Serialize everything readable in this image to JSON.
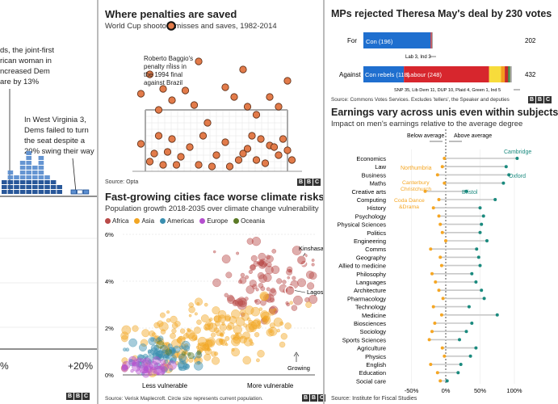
{
  "colors": {
    "dem": "#2f5ea8",
    "africa": "#b94a48",
    "asia": "#f2a623",
    "americas": "#3a8fb0",
    "europe": "#b54fcf",
    "oceania": "#5b7a26",
    "orange": "#f5a623",
    "teal": "#1a8a7e",
    "con": "#1f6fcf",
    "labour": "#d7262d",
    "snp": "#f7dc3b",
    "libdem": "#f59b1d",
    "other": "#9b9b9b"
  },
  "left_panel": {
    "annotation_top": [
      "ds, the joint-first",
      "rican woman in",
      "ncreased Dem",
      "are by 13%"
    ],
    "annotation_wv": [
      "In West Virginia 3,",
      "Dems failed to turn",
      "the seat despite a",
      "20% swing their way"
    ],
    "axis_left": "%",
    "axis_right": "+20%",
    "chart_data": {
      "type": "bar",
      "values": []
    }
  },
  "penalties": {
    "title": "Where penalties are saved",
    "subtitle": "World Cup shootout misses and saves, 1982-2014",
    "annotation": [
      "Roberto Baggio's",
      "penalty miss in",
      "the 1994 final",
      "against Brazil"
    ],
    "source": "Source: Opta",
    "chart_data": {
      "type": "scatter",
      "points_above": [
        [
          -15,
          120
        ],
        [
          -10,
          88
        ],
        [
          -4,
          136
        ],
        [
          2,
          104
        ],
        [
          6,
          126
        ],
        [
          12,
          92
        ],
        [
          16,
          112
        ],
        [
          -13,
          76
        ],
        [
          9,
          70
        ],
        [
          14,
          80
        ],
        [
          -2,
          60
        ],
        [
          4,
          92
        ],
        [
          -7,
          100
        ],
        [
          -17,
          96
        ],
        [
          -12,
          102
        ],
        [
          7,
          80
        ],
        [
          -5,
          82
        ]
      ],
      "points_goal": [
        [
          -17,
          34
        ],
        [
          -15,
          12
        ],
        [
          -13,
          44
        ],
        [
          -11,
          24
        ],
        [
          -10,
          40
        ],
        [
          -8,
          18
        ],
        [
          -6,
          30
        ],
        [
          -4,
          8
        ],
        [
          -3,
          44
        ],
        [
          0,
          20
        ],
        [
          2,
          36
        ],
        [
          5,
          14
        ],
        [
          7,
          28
        ],
        [
          8,
          44
        ],
        [
          11,
          10
        ],
        [
          12,
          32
        ],
        [
          14,
          20
        ],
        [
          15,
          40
        ],
        [
          16,
          26
        ],
        [
          -1,
          6
        ],
        [
          -9,
          8
        ],
        [
          3,
          6
        ],
        [
          6,
          22
        ],
        [
          9,
          14
        ],
        [
          13,
          30
        ],
        [
          -14,
          22
        ],
        [
          -12,
          8
        ],
        [
          10,
          40
        ],
        [
          17,
          14
        ]
      ],
      "highlight": [
        0,
        128
      ]
    }
  },
  "mps": {
    "title": "MPs rejected Theresa May's deal by 230 votes",
    "for_label": "For",
    "against_label": "Against",
    "for_seg": "Con (196)",
    "against_seg1": "Con rebels (118)",
    "against_seg2": "Labour (248)",
    "for_total": "202",
    "against_total": "432",
    "for_note": "Lab 3, Ind 3",
    "against_note": "SNP 35, Lib Dem 11, DUP 10, Plaid 4, Green 1, Ind 5",
    "source": "Source: Commons Votes Services. Excludes 'tellers', the Speaker and deputies",
    "chart_data": {
      "type": "bar",
      "categories": [
        "For",
        "Against"
      ],
      "series": [
        {
          "name": "Con",
          "values": [
            196,
            118
          ]
        },
        {
          "name": "Labour",
          "values": [
            3,
            248
          ]
        },
        {
          "name": "SNP",
          "values": [
            0,
            35
          ]
        },
        {
          "name": "Lib Dem",
          "values": [
            0,
            11
          ]
        },
        {
          "name": "DUP",
          "values": [
            0,
            10
          ]
        },
        {
          "name": "Plaid",
          "values": [
            0,
            4
          ]
        },
        {
          "name": "Green",
          "values": [
            0,
            1
          ]
        },
        {
          "name": "Ind",
          "values": [
            3,
            5
          ]
        }
      ],
      "totals": [
        202,
        432
      ]
    }
  },
  "cities": {
    "title": "Fast-growing cities face worse climate risks",
    "subtitle": "Population growth 2018-2035 over climate change vulnerability",
    "legend": [
      "Africa",
      "Asia",
      "Americas",
      "Europe",
      "Oceania"
    ],
    "yticks": [
      "6%",
      "4%",
      "2%",
      "0%"
    ],
    "xlabel_left": "Less vulnerable",
    "xlabel_right": "More vulnerable",
    "growing": "Growing",
    "kinshasa": "Kinshasa",
    "lagos": "Lagos",
    "source": "Source: Verisk Maplecroft. Circle size represents current population.",
    "chart_data": {
      "type": "scatter",
      "ylim": [
        0,
        6
      ],
      "clusters": [
        {
          "name": "Africa",
          "cx": 0.78,
          "cy": 4.1,
          "sx": 0.12,
          "sy": 0.75,
          "n": 90
        },
        {
          "name": "Asia",
          "cx": 0.45,
          "cy": 1.8,
          "sx": 0.22,
          "sy": 0.6,
          "n": 190
        },
        {
          "name": "Americas",
          "cx": 0.2,
          "cy": 0.8,
          "sx": 0.1,
          "sy": 0.35,
          "n": 70
        },
        {
          "name": "Europe",
          "cx": 0.12,
          "cy": 0.3,
          "sx": 0.07,
          "sy": 0.2,
          "n": 35
        },
        {
          "name": "Oceania",
          "cx": 0.3,
          "cy": 1.0,
          "sx": 0.05,
          "sy": 0.2,
          "n": 6
        }
      ],
      "kinshasa": [
        0.93,
        4.9
      ],
      "lagos": [
        0.87,
        3.6
      ]
    }
  },
  "earnings": {
    "title": "Earnings vary across unis even within subjects",
    "subtitle": "Impact on men's earnings relative to the average degree",
    "below": "Below average",
    "above": "Above average",
    "xticks": [
      "-50%",
      "0%",
      "50%",
      "100%"
    ],
    "source": "Source: Institute for Fiscal Studies",
    "notes": {
      "cambridge": "Cambridge",
      "oxford": "Oxford",
      "bristol": "Bristol",
      "northumbria": "Northumbria",
      "canterbury": [
        "Canterbury",
        "Christchurch"
      ],
      "coventry": [
        "Coda Dance",
        "&Drama"
      ]
    },
    "chart_data": {
      "type": "scatter",
      "xlim": [
        -80,
        120
      ],
      "rows": [
        {
          "subject": "Economics",
          "min": -2,
          "max": 104
        },
        {
          "subject": "Law",
          "min": -5,
          "max": 88
        },
        {
          "subject": "Business",
          "min": -12,
          "max": 92
        },
        {
          "subject": "Maths",
          "min": -2,
          "max": 84
        },
        {
          "subject": "Creative arts",
          "min": -30,
          "max": 30
        },
        {
          "subject": "Computing",
          "min": -10,
          "max": 72
        },
        {
          "subject": "History",
          "min": -18,
          "max": 50
        },
        {
          "subject": "Psychology",
          "min": -10,
          "max": 55
        },
        {
          "subject": "Physical Sciences",
          "min": -8,
          "max": 52
        },
        {
          "subject": "Politics",
          "min": -5,
          "max": 50
        },
        {
          "subject": "Engineering",
          "min": 0,
          "max": 60
        },
        {
          "subject": "Comms",
          "min": -22,
          "max": 45
        },
        {
          "subject": "Geography",
          "min": -8,
          "max": 48
        },
        {
          "subject": "Allied to medicine",
          "min": -6,
          "max": 50
        },
        {
          "subject": "Philosophy",
          "min": -20,
          "max": 38
        },
        {
          "subject": "Languages",
          "min": -15,
          "max": 44
        },
        {
          "subject": "Architecture",
          "min": -10,
          "max": 52
        },
        {
          "subject": "Pharmacology",
          "min": -4,
          "max": 56
        },
        {
          "subject": "Technology",
          "min": -18,
          "max": 34
        },
        {
          "subject": "Medicine",
          "min": -6,
          "max": 75
        },
        {
          "subject": "Biosciences",
          "min": -16,
          "max": 38
        },
        {
          "subject": "Sociology",
          "min": -20,
          "max": 30
        },
        {
          "subject": "Sports Sciences",
          "min": -24,
          "max": 20
        },
        {
          "subject": "Agriculture",
          "min": -5,
          "max": 44
        },
        {
          "subject": "Physics",
          "min": -2,
          "max": 36
        },
        {
          "subject": "English",
          "min": -22,
          "max": 22
        },
        {
          "subject": "Education",
          "min": -12,
          "max": 18
        },
        {
          "subject": "Social care",
          "min": -8,
          "max": 2
        }
      ]
    }
  },
  "bbc": [
    "B",
    "B",
    "C"
  ]
}
